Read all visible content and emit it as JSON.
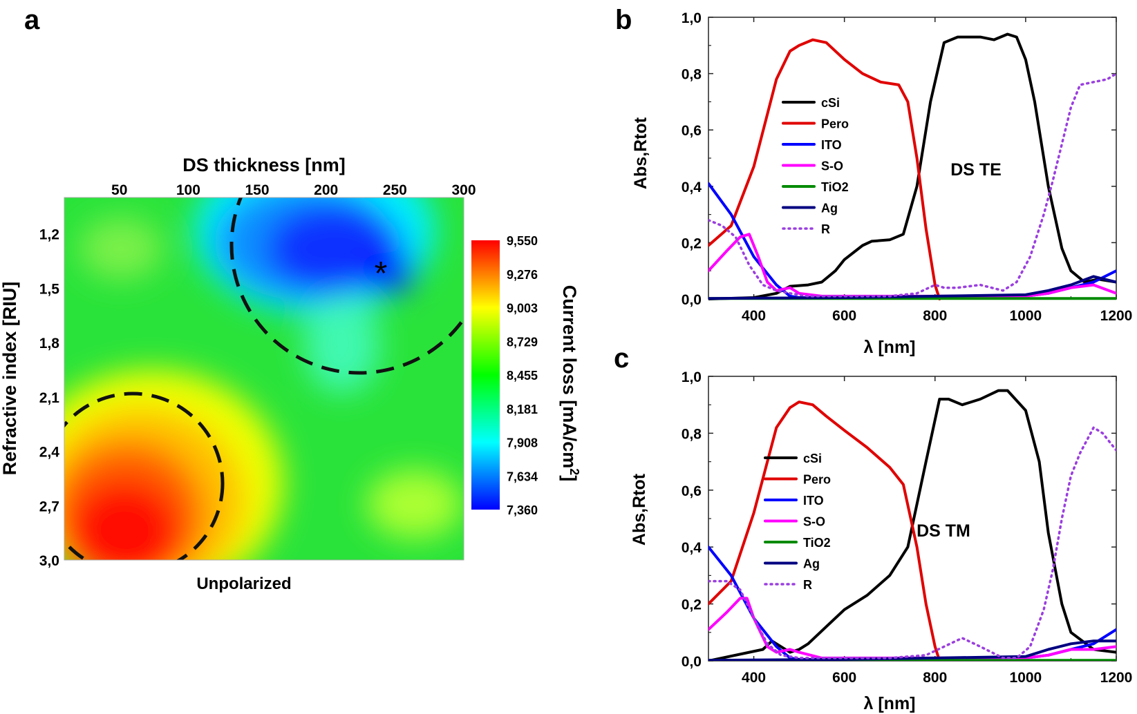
{
  "chart_data": [
    {
      "panel": "a",
      "type": "heatmap",
      "title": "DS thickness [nm]",
      "xlabel": "DS thickness [nm]",
      "ylabel": "Refractive index [RIU]",
      "xlim": [
        10,
        300
      ],
      "ylim": [
        1.0,
        3.0
      ],
      "xticks": [
        50,
        100,
        150,
        200,
        250,
        300
      ],
      "yticks": [
        "1,2",
        "1,5",
        "1,8",
        "2,1",
        "2,4",
        "2,7",
        "3,0"
      ],
      "colorbar": {
        "label": "Current loss [mA/cm",
        "label_sup": "2",
        "label_end": "]",
        "range": [
          7.36,
          9.55
        ],
        "ticks": [
          "9,550",
          "9,276",
          "9,003",
          "8,729",
          "8,455",
          "8,181",
          "7,908",
          "7,634",
          "7,360"
        ],
        "colors": [
          "#0000ff",
          "#00ffff",
          "#00ff00",
          "#ffff00",
          "#ff0000"
        ]
      },
      "features": [
        {
          "kind": "minimum",
          "x": 240,
          "y": 1.38,
          "value": 7.36
        },
        {
          "kind": "maximum",
          "x": 60,
          "y": 2.75,
          "value": 9.55
        }
      ],
      "annotation": "*",
      "caption": "Unpolarized"
    },
    {
      "panel": "b",
      "type": "line",
      "xlabel": "λ [nm]",
      "ylabel": "Abs,Rtot",
      "xlim": [
        300,
        1200
      ],
      "ylim": [
        0,
        1.0
      ],
      "xticks": [
        "400",
        "600",
        "800",
        "1000",
        "1200"
      ],
      "yticks": [
        "0,0",
        "0,2",
        "0,4",
        "0,6",
        "0,8",
        "1,0"
      ],
      "annotation": "DS TE",
      "series": [
        {
          "name": "cSi",
          "color": "#000000",
          "style": "solid",
          "x": [
            300,
            400,
            450,
            480,
            520,
            550,
            580,
            600,
            640,
            660,
            700,
            730,
            760,
            790,
            820,
            850,
            900,
            930,
            960,
            980,
            1000,
            1020,
            1050,
            1080,
            1100,
            1130,
            1160,
            1200
          ],
          "y": [
            0.0,
            0.005,
            0.02,
            0.045,
            0.05,
            0.06,
            0.1,
            0.14,
            0.19,
            0.205,
            0.21,
            0.23,
            0.4,
            0.7,
            0.91,
            0.93,
            0.93,
            0.92,
            0.94,
            0.93,
            0.85,
            0.7,
            0.4,
            0.18,
            0.1,
            0.06,
            0.07,
            0.06
          ]
        },
        {
          "name": "Pero",
          "color": "#e00000",
          "style": "solid",
          "x": [
            300,
            350,
            400,
            450,
            480,
            500,
            530,
            560,
            600,
            640,
            680,
            720,
            740,
            760,
            780,
            800,
            810
          ],
          "y": [
            0.19,
            0.26,
            0.47,
            0.78,
            0.88,
            0.9,
            0.92,
            0.91,
            0.85,
            0.8,
            0.77,
            0.76,
            0.7,
            0.5,
            0.25,
            0.05,
            0.0
          ]
        },
        {
          "name": "ITO",
          "color": "#0000ff",
          "style": "solid",
          "x": [
            300,
            350,
            400,
            450,
            480,
            500,
            600,
            800,
            1000,
            1050,
            1100,
            1150,
            1200
          ],
          "y": [
            0.41,
            0.3,
            0.15,
            0.05,
            0.01,
            0.005,
            0.005,
            0.005,
            0.01,
            0.02,
            0.04,
            0.06,
            0.1
          ]
        },
        {
          "name": "S-O",
          "color": "#ff00ff",
          "style": "solid",
          "x": [
            300,
            340,
            370,
            390,
            410,
            430,
            450,
            480,
            500,
            550,
            600,
            800,
            1000,
            1050,
            1100,
            1150,
            1200
          ],
          "y": [
            0.1,
            0.17,
            0.22,
            0.23,
            0.15,
            0.06,
            0.03,
            0.04,
            0.02,
            0.01,
            0.01,
            0.01,
            0.01,
            0.02,
            0.04,
            0.05,
            0.02
          ]
        },
        {
          "name": "TiO2",
          "color": "#008a00",
          "style": "solid",
          "x": [
            300,
            600,
            900,
            1200
          ],
          "y": [
            0.002,
            0.002,
            0.002,
            0.002
          ]
        },
        {
          "name": "Ag",
          "color": "#000080",
          "style": "solid",
          "x": [
            300,
            400,
            600,
            800,
            1000,
            1050,
            1100,
            1150,
            1200
          ],
          "y": [
            0.002,
            0.003,
            0.005,
            0.01,
            0.015,
            0.03,
            0.05,
            0.08,
            0.06
          ]
        },
        {
          "name": "R",
          "color": "#9a3ee0",
          "style": "dotted",
          "x": [
            300,
            330,
            360,
            390,
            420,
            450,
            480,
            520,
            600,
            700,
            760,
            800,
            820,
            850,
            900,
            950,
            980,
            1010,
            1040,
            1060,
            1080,
            1100,
            1120,
            1150,
            1180,
            1200
          ],
          "y": [
            0.28,
            0.26,
            0.22,
            0.12,
            0.05,
            0.03,
            0.02,
            0.01,
            0.01,
            0.01,
            0.02,
            0.05,
            0.04,
            0.04,
            0.05,
            0.03,
            0.06,
            0.15,
            0.3,
            0.42,
            0.55,
            0.68,
            0.76,
            0.77,
            0.78,
            0.8
          ]
        }
      ]
    },
    {
      "panel": "c",
      "type": "line",
      "xlabel": "λ [nm]",
      "ylabel": "Abs,Rtot",
      "xlim": [
        300,
        1200
      ],
      "ylim": [
        0,
        1.0
      ],
      "xticks": [
        "400",
        "600",
        "800",
        "1000",
        "1200"
      ],
      "yticks": [
        "0,0",
        "0,2",
        "0,4",
        "0,6",
        "0,8",
        "1,0"
      ],
      "annotation": "DS TM",
      "series": [
        {
          "name": "cSi",
          "color": "#000000",
          "style": "solid",
          "x": [
            300,
            420,
            440,
            460,
            480,
            500,
            520,
            560,
            600,
            650,
            700,
            740,
            780,
            810,
            830,
            860,
            900,
            940,
            960,
            1000,
            1030,
            1050,
            1080,
            1100,
            1150,
            1200
          ],
          "y": [
            0.0,
            0.04,
            0.07,
            0.05,
            0.03,
            0.04,
            0.06,
            0.12,
            0.18,
            0.23,
            0.3,
            0.4,
            0.7,
            0.92,
            0.92,
            0.9,
            0.92,
            0.95,
            0.95,
            0.88,
            0.7,
            0.45,
            0.2,
            0.1,
            0.04,
            0.03
          ]
        },
        {
          "name": "Pero",
          "color": "#e00000",
          "style": "solid",
          "x": [
            300,
            350,
            400,
            450,
            480,
            500,
            530,
            560,
            600,
            650,
            700,
            730,
            760,
            780,
            800,
            810
          ],
          "y": [
            0.2,
            0.28,
            0.52,
            0.82,
            0.89,
            0.91,
            0.9,
            0.86,
            0.81,
            0.75,
            0.68,
            0.62,
            0.4,
            0.2,
            0.05,
            0.0
          ]
        },
        {
          "name": "ITO",
          "color": "#0000ff",
          "style": "solid",
          "x": [
            300,
            350,
            400,
            450,
            480,
            500,
            600,
            800,
            1000,
            1050,
            1100,
            1150,
            1200
          ],
          "y": [
            0.4,
            0.3,
            0.15,
            0.05,
            0.01,
            0.005,
            0.005,
            0.005,
            0.01,
            0.02,
            0.04,
            0.06,
            0.11
          ]
        },
        {
          "name": "S-O",
          "color": "#ff00ff",
          "style": "solid",
          "x": [
            300,
            340,
            370,
            385,
            400,
            430,
            450,
            480,
            500,
            550,
            600,
            800,
            1000,
            1050,
            1100,
            1150,
            1200
          ],
          "y": [
            0.11,
            0.17,
            0.22,
            0.22,
            0.15,
            0.05,
            0.03,
            0.04,
            0.03,
            0.01,
            0.01,
            0.01,
            0.01,
            0.02,
            0.04,
            0.04,
            0.05
          ]
        },
        {
          "name": "TiO2",
          "color": "#008a00",
          "style": "solid",
          "x": [
            300,
            600,
            900,
            1200
          ],
          "y": [
            0.002,
            0.002,
            0.002,
            0.002
          ]
        },
        {
          "name": "Ag",
          "color": "#000080",
          "style": "solid",
          "x": [
            300,
            400,
            600,
            800,
            1000,
            1050,
            1100,
            1150,
            1200
          ],
          "y": [
            0.002,
            0.003,
            0.005,
            0.01,
            0.015,
            0.04,
            0.06,
            0.07,
            0.07
          ]
        },
        {
          "name": "R",
          "color": "#9a3ee0",
          "style": "dotted",
          "x": [
            300,
            340,
            370,
            400,
            430,
            460,
            500,
            600,
            700,
            780,
            820,
            860,
            900,
            950,
            980,
            1010,
            1040,
            1060,
            1080,
            1100,
            1120,
            1150,
            1170,
            1200
          ],
          "y": [
            0.28,
            0.28,
            0.25,
            0.15,
            0.06,
            0.02,
            0.01,
            0.01,
            0.01,
            0.02,
            0.05,
            0.08,
            0.05,
            0.01,
            0.01,
            0.05,
            0.18,
            0.32,
            0.5,
            0.65,
            0.73,
            0.82,
            0.8,
            0.74
          ]
        }
      ]
    }
  ]
}
